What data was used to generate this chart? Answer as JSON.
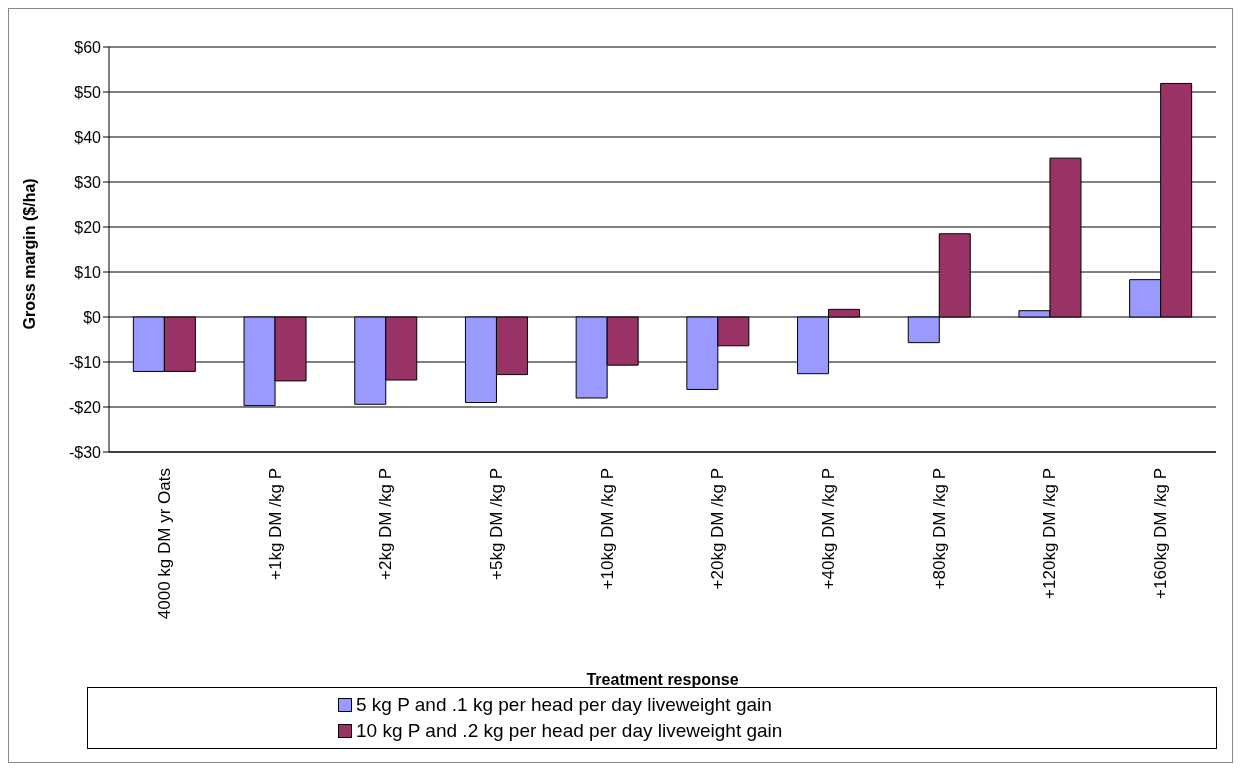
{
  "chart_data": {
    "type": "bar",
    "xlabel": "Treatment response",
    "ylabel": "Gross margin ($/ha)",
    "categories": [
      "4000 kg DM yr Oats",
      "+1kg DM /kg P",
      "+2kg DM /kg P",
      "+5kg DM /kg P",
      "+10kg DM /kg P",
      "+20kg DM /kg P",
      "+40kg DM /kg P",
      "+80kg DM /kg P",
      "+120kg DM /kg P",
      "+160kg DM /kg P"
    ],
    "series": [
      {
        "name": "5 kg P and .1 kg per head per day liveweight gain",
        "color": "#9999ff",
        "values": [
          -12.1,
          -19.7,
          -19.4,
          -19,
          -18,
          -16.1,
          -12.6,
          -5.7,
          1.4,
          8.3
        ]
      },
      {
        "name": "10 kg P and .2 kg per head per day liveweight gain",
        "color": "#993366",
        "values": [
          -12.1,
          -14.2,
          -14,
          -12.8,
          -10.7,
          -6.4,
          1.7,
          18.5,
          35.3,
          51.9
        ]
      }
    ],
    "ylim": [
      -30,
      60
    ],
    "yticks": [
      {
        "value": -30,
        "label": "-$30"
      },
      {
        "value": -20,
        "label": "-$20"
      },
      {
        "value": -10,
        "label": "-$10"
      },
      {
        "value": 0,
        "label": "$0"
      },
      {
        "value": 10,
        "label": "$10"
      },
      {
        "value": 20,
        "label": "$20"
      },
      {
        "value": 30,
        "label": "$30"
      },
      {
        "value": 40,
        "label": "$40"
      },
      {
        "value": 50,
        "label": "$50"
      },
      {
        "value": 60,
        "label": "$60"
      }
    ],
    "grid": "y",
    "legend": "bottom"
  }
}
